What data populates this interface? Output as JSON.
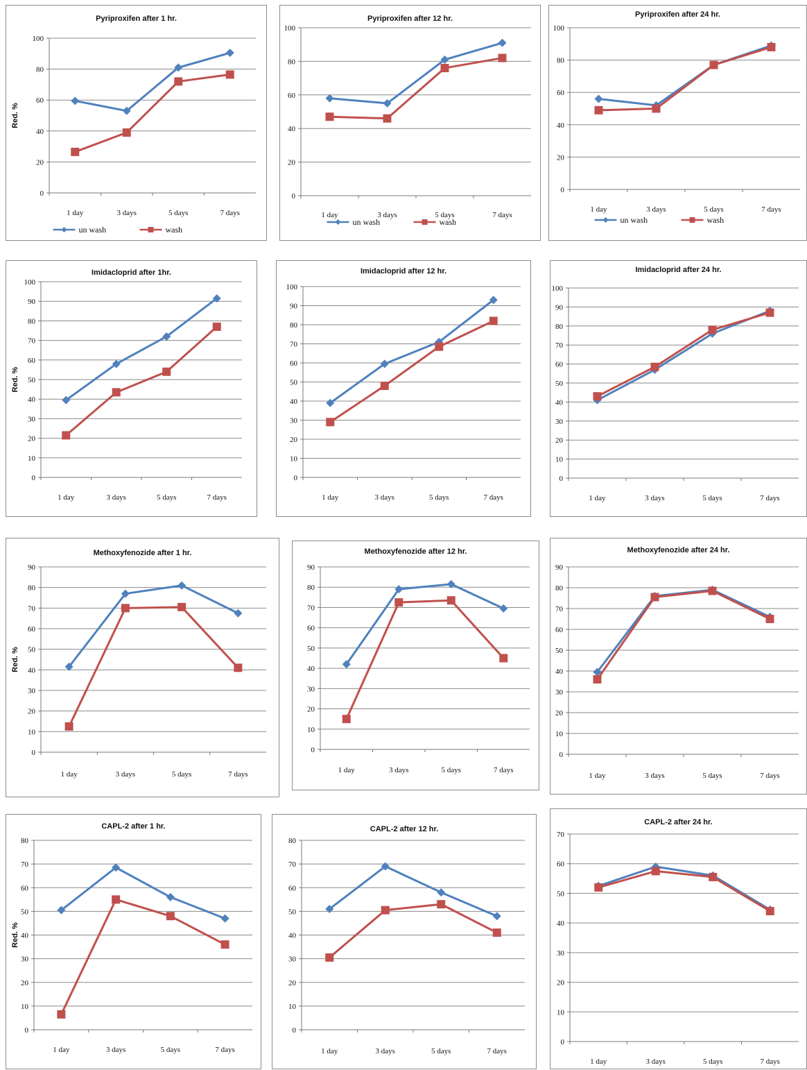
{
  "colors": {
    "unwash": "#4f81bd",
    "wash": "#c0504d",
    "gridline": "#8a8a8a",
    "border": "#8c8c8c"
  },
  "chart_data": [
    {
      "type": "line",
      "title": "Pyriproxifen after 1 hr.",
      "ylabel": "Red. %",
      "ylim": [
        0,
        100
      ],
      "ystep": 20,
      "categories": [
        "1 day",
        "3 days",
        "5 days",
        "7 days"
      ],
      "grid": true,
      "legend": "bottom",
      "series": [
        {
          "name": "un wash",
          "values": [
            59.5,
            53,
            81,
            90.5
          ]
        },
        {
          "name": "wash",
          "values": [
            26.5,
            39,
            72,
            76.5
          ]
        }
      ]
    },
    {
      "type": "line",
      "title": "Pyriproxifen after 12 hr.",
      "ylabel": "",
      "ylim": [
        0,
        100
      ],
      "ystep": 20,
      "categories": [
        "1 day",
        "3 days",
        "5 days",
        "7 days"
      ],
      "grid": true,
      "legend": "bottom",
      "series": [
        {
          "name": "un wash",
          "values": [
            58,
            55,
            81,
            91
          ]
        },
        {
          "name": "wash",
          "values": [
            47,
            46,
            76,
            82
          ]
        }
      ]
    },
    {
      "type": "line",
      "title": "Pyriproxifen after 24 hr.",
      "ylabel": "",
      "ylim": [
        0,
        100
      ],
      "ystep": 20,
      "categories": [
        "1 day",
        "3 days",
        "5 days",
        "7 days"
      ],
      "grid": true,
      "legend": "bottom",
      "series": [
        {
          "name": "un wash",
          "values": [
            56,
            52,
            77,
            89
          ]
        },
        {
          "name": "wash",
          "values": [
            49,
            50,
            77,
            88
          ]
        }
      ]
    },
    {
      "type": "line",
      "title": "Imidacloprid after 1hr.",
      "ylabel": "Red. %",
      "ylim": [
        0,
        100
      ],
      "ystep": 10,
      "categories": [
        "1 day",
        "3 days",
        "5 days",
        "7 days"
      ],
      "grid": true,
      "legend": "none",
      "series": [
        {
          "name": "",
          "values": [
            39.5,
            58,
            72,
            91.5
          ]
        },
        {
          "name": "",
          "values": [
            21.5,
            43.5,
            54,
            77
          ]
        }
      ]
    },
    {
      "type": "line",
      "title": "Imidacloprid after 12 hr.",
      "ylabel": "",
      "ylim": [
        0,
        100
      ],
      "ystep": 10,
      "categories": [
        "1 day",
        "3 days",
        "5 days",
        "7 days"
      ],
      "grid": true,
      "legend": "none",
      "series": [
        {
          "name": "",
          "values": [
            39,
            59.5,
            71,
            93
          ]
        },
        {
          "name": "",
          "values": [
            29,
            48,
            68.5,
            82
          ]
        }
      ]
    },
    {
      "type": "line",
      "title": "Imidacloprid after 24 hr.",
      "ylabel": "",
      "ylim": [
        0,
        100
      ],
      "ystep": 10,
      "categories": [
        "1 day",
        "3 days",
        "5 days",
        "7 days"
      ],
      "grid": true,
      "legend": "none",
      "series": [
        {
          "name": "",
          "values": [
            41,
            57,
            76,
            88
          ]
        },
        {
          "name": "",
          "values": [
            43,
            58.5,
            78,
            87
          ]
        }
      ]
    },
    {
      "type": "line",
      "title": "Methoxyfenozide after 1 hr.",
      "ylabel": "Red. %",
      "ylim": [
        0,
        90
      ],
      "ystep": 10,
      "categories": [
        "1 day",
        "3 days",
        "5 days",
        "7 days"
      ],
      "grid": true,
      "legend": "none",
      "series": [
        {
          "name": "",
          "values": [
            41.5,
            77,
            81,
            67.5
          ]
        },
        {
          "name": "",
          "values": [
            12.5,
            70,
            70.5,
            41
          ]
        }
      ]
    },
    {
      "type": "line",
      "title": "Methoxyfenozide after 12 hr.",
      "ylabel": "",
      "ylim": [
        0,
        90
      ],
      "ystep": 10,
      "categories": [
        "1 day",
        "3 days",
        "5 days",
        "7 days"
      ],
      "grid": true,
      "legend": "none",
      "series": [
        {
          "name": "",
          "values": [
            42,
            79,
            81.5,
            69.5
          ]
        },
        {
          "name": "",
          "values": [
            15,
            72.5,
            73.5,
            45
          ]
        }
      ]
    },
    {
      "type": "line",
      "title": "Methoxyfenozide after 24 hr.",
      "ylabel": "",
      "ylim": [
        0,
        90
      ],
      "ystep": 10,
      "categories": [
        "1 day",
        "3 days",
        "5 days",
        "7 days"
      ],
      "grid": true,
      "legend": "none",
      "series": [
        {
          "name": "",
          "values": [
            39.5,
            76,
            79,
            66
          ]
        },
        {
          "name": "",
          "values": [
            36,
            75.5,
            78.5,
            65
          ]
        }
      ]
    },
    {
      "type": "line",
      "title": "CAPL-2 after 1 hr.",
      "ylabel": "Red. %",
      "ylim": [
        0,
        80
      ],
      "ystep": 10,
      "categories": [
        "1 day",
        "3 days",
        "5 days",
        "7 days"
      ],
      "grid": true,
      "legend": "none",
      "series": [
        {
          "name": "",
          "values": [
            50.5,
            68.5,
            56,
            47
          ]
        },
        {
          "name": "",
          "values": [
            6.5,
            55,
            48,
            36
          ]
        }
      ]
    },
    {
      "type": "line",
      "title": "CAPL-2 after 12 hr.",
      "ylabel": "",
      "ylim": [
        0,
        80
      ],
      "ystep": 10,
      "categories": [
        "1 day",
        "3 days",
        "5 days",
        "7 days"
      ],
      "grid": true,
      "legend": "none",
      "series": [
        {
          "name": "",
          "values": [
            51,
            69,
            58,
            48
          ]
        },
        {
          "name": "",
          "values": [
            30.5,
            50.5,
            53,
            41
          ]
        }
      ]
    },
    {
      "type": "line",
      "title": "CAPL-2 after 24 hr.",
      "ylabel": "",
      "ylim": [
        0,
        70
      ],
      "ystep": 10,
      "categories": [
        "1 day",
        "3 days",
        "5 days",
        "7 days"
      ],
      "grid": true,
      "legend": "none",
      "series": [
        {
          "name": "",
          "values": [
            52.5,
            59,
            56,
            44.5
          ]
        },
        {
          "name": "",
          "values": [
            52,
            57.5,
            55.5,
            44
          ]
        }
      ]
    }
  ]
}
